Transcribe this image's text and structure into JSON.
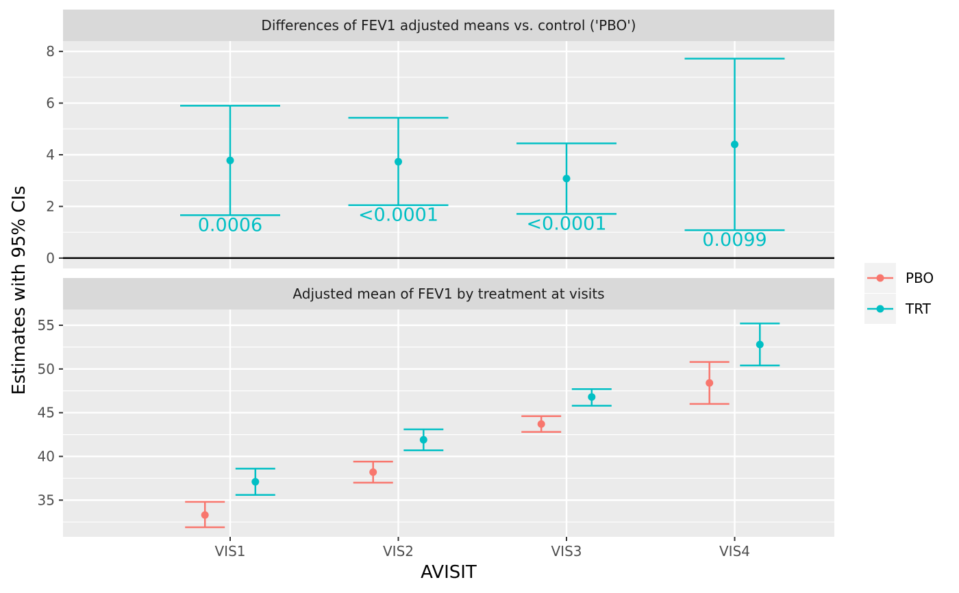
{
  "chart_data": [
    {
      "type": "errorbar",
      "title": "Differences of FEV1 adjusted means vs. control ('PBO')",
      "categories": [
        "VIS1",
        "VIS2",
        "VIS3",
        "VIS4"
      ],
      "ylim": [
        -0.4,
        8.4
      ],
      "yticks": [
        0,
        2,
        4,
        6,
        8
      ],
      "reference_line": 0,
      "series": [
        {
          "name": "TRT",
          "estimate": [
            3.78,
            3.73,
            3.08,
            4.4
          ],
          "lower": [
            1.66,
            2.05,
            1.71,
            1.08
          ],
          "upper": [
            5.9,
            5.43,
            4.44,
            7.72
          ],
          "pvalue_labels": [
            "0.0006",
            "<0.0001",
            "<0.0001",
            "0.0099"
          ]
        }
      ]
    },
    {
      "type": "errorbar",
      "title": "Adjusted mean of FEV1 by treatment at visits",
      "categories": [
        "VIS1",
        "VIS2",
        "VIS3",
        "VIS4"
      ],
      "ylim": [
        30.8,
        56.8
      ],
      "yticks": [
        35,
        40,
        45,
        50,
        55
      ],
      "series": [
        {
          "name": "PBO",
          "estimate": [
            33.3,
            38.2,
            43.7,
            48.4
          ],
          "lower": [
            31.9,
            37.0,
            42.8,
            46.0
          ],
          "upper": [
            34.8,
            39.4,
            44.6,
            50.8
          ]
        },
        {
          "name": "TRT",
          "estimate": [
            37.1,
            41.9,
            46.8,
            52.8
          ],
          "lower": [
            35.6,
            40.7,
            45.8,
            50.4
          ],
          "upper": [
            38.6,
            43.1,
            47.7,
            55.2
          ]
        }
      ]
    }
  ],
  "xlabel": "AVISIT",
  "ylabel": "Estimates with 95% CIs",
  "legend": {
    "position": "right",
    "items": [
      {
        "name": "PBO",
        "color": "#F8766D"
      },
      {
        "name": "TRT",
        "color": "#00BFC4"
      }
    ]
  },
  "colors": {
    "panel_bg": "#EBEBEB",
    "strip_bg": "#D9D9D9",
    "grid": "#FFFFFF",
    "PBO": "#F8766D",
    "TRT": "#00BFC4"
  }
}
